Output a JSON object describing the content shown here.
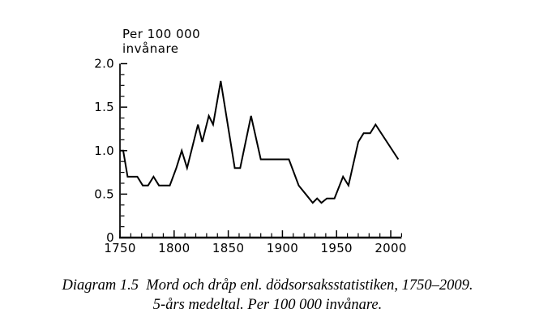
{
  "page": {
    "background": "#ffffff"
  },
  "chart": {
    "y_axis_title_line1": "Per 100 000",
    "y_axis_title_line2": "invånare"
  },
  "caption": {
    "line1": "Diagram 1.5  Mord och dråp enl. dödsorsaksstatistiken, 1750–2009.",
    "line2": "5-års medeltal. Per 100 000 invånare."
  },
  "chart_data": {
    "type": "line",
    "title": "Per 100 000 invånare",
    "xlabel": "",
    "ylabel": "Per 100 000 invånare",
    "xlim": [
      1750,
      2010
    ],
    "ylim": [
      0,
      2.0
    ],
    "x_major_ticks": [
      1750,
      1800,
      1850,
      1900,
      1950,
      2000
    ],
    "x_tick_labels": [
      "1750",
      "1800",
      "1850",
      "1900",
      "1950",
      "2000"
    ],
    "x_minor_tick_step": 10,
    "y_major_ticks": [
      0,
      0.5,
      1.0,
      1.5,
      2.0
    ],
    "y_tick_labels": [
      "0",
      "0.5",
      "1.0",
      "1.5",
      "2.0"
    ],
    "y_minor_tick_step": 0.125,
    "grid": false,
    "legend_position": "none",
    "line_color": "#000000",
    "axis_color": "#000000",
    "series": [
      {
        "name": "Mord och dråp per 100 000 invånare, 5-års medeltal",
        "points": [
          [
            1750,
            1.0
          ],
          [
            1753,
            1.0
          ],
          [
            1757,
            0.7
          ],
          [
            1766,
            0.7
          ],
          [
            1771,
            0.6
          ],
          [
            1776,
            0.6
          ],
          [
            1781,
            0.7
          ],
          [
            1786,
            0.6
          ],
          [
            1796,
            0.6
          ],
          [
            1802,
            0.8
          ],
          [
            1807,
            1.0
          ],
          [
            1812,
            0.8
          ],
          [
            1822,
            1.3
          ],
          [
            1826,
            1.1
          ],
          [
            1832,
            1.4
          ],
          [
            1836,
            1.3
          ],
          [
            1843,
            1.8
          ],
          [
            1856,
            0.8
          ],
          [
            1861,
            0.8
          ],
          [
            1871,
            1.4
          ],
          [
            1880,
            0.9
          ],
          [
            1906,
            0.9
          ],
          [
            1915,
            0.6
          ],
          [
            1928,
            0.4
          ],
          [
            1932,
            0.45
          ],
          [
            1936,
            0.4
          ],
          [
            1941,
            0.45
          ],
          [
            1948,
            0.45
          ],
          [
            1956,
            0.7
          ],
          [
            1961,
            0.6
          ],
          [
            1970,
            1.1
          ],
          [
            1975,
            1.2
          ],
          [
            1981,
            1.2
          ],
          [
            1986,
            1.3
          ],
          [
            2007,
            0.9
          ]
        ]
      }
    ]
  }
}
